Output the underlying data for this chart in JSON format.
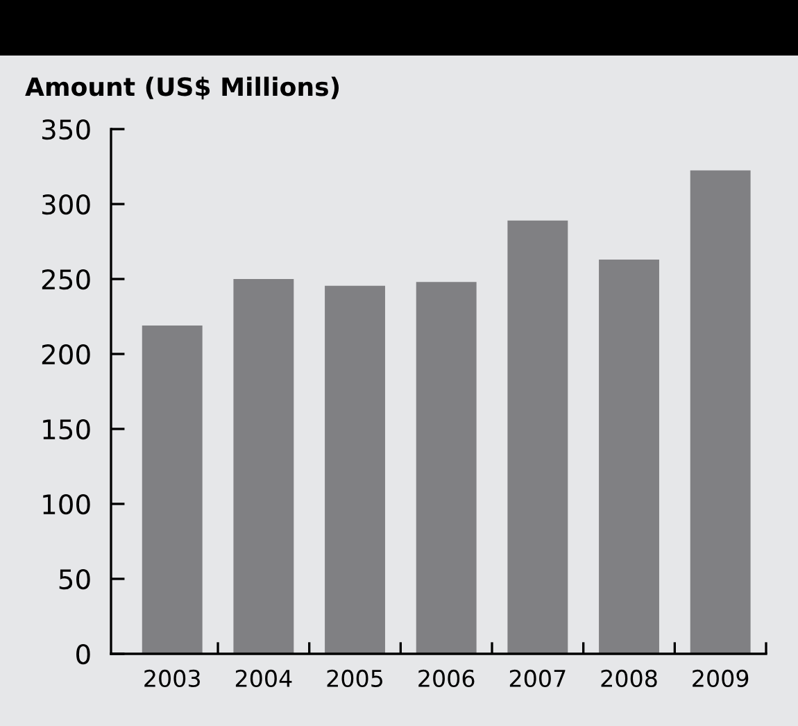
{
  "chart_data": {
    "type": "bar",
    "ylabel": "Amount (US$ Millions)",
    "categories": [
      "2003",
      "2004",
      "2005",
      "2006",
      "2007",
      "2008",
      "2009"
    ],
    "values": [
      219,
      250,
      245.5,
      248,
      289,
      263,
      322.5
    ],
    "color": "#808083",
    "ylim": [
      0,
      350
    ],
    "yticks": [
      0,
      50,
      100,
      150,
      200,
      250,
      300,
      350
    ],
    "grid": false,
    "legend": false
  }
}
